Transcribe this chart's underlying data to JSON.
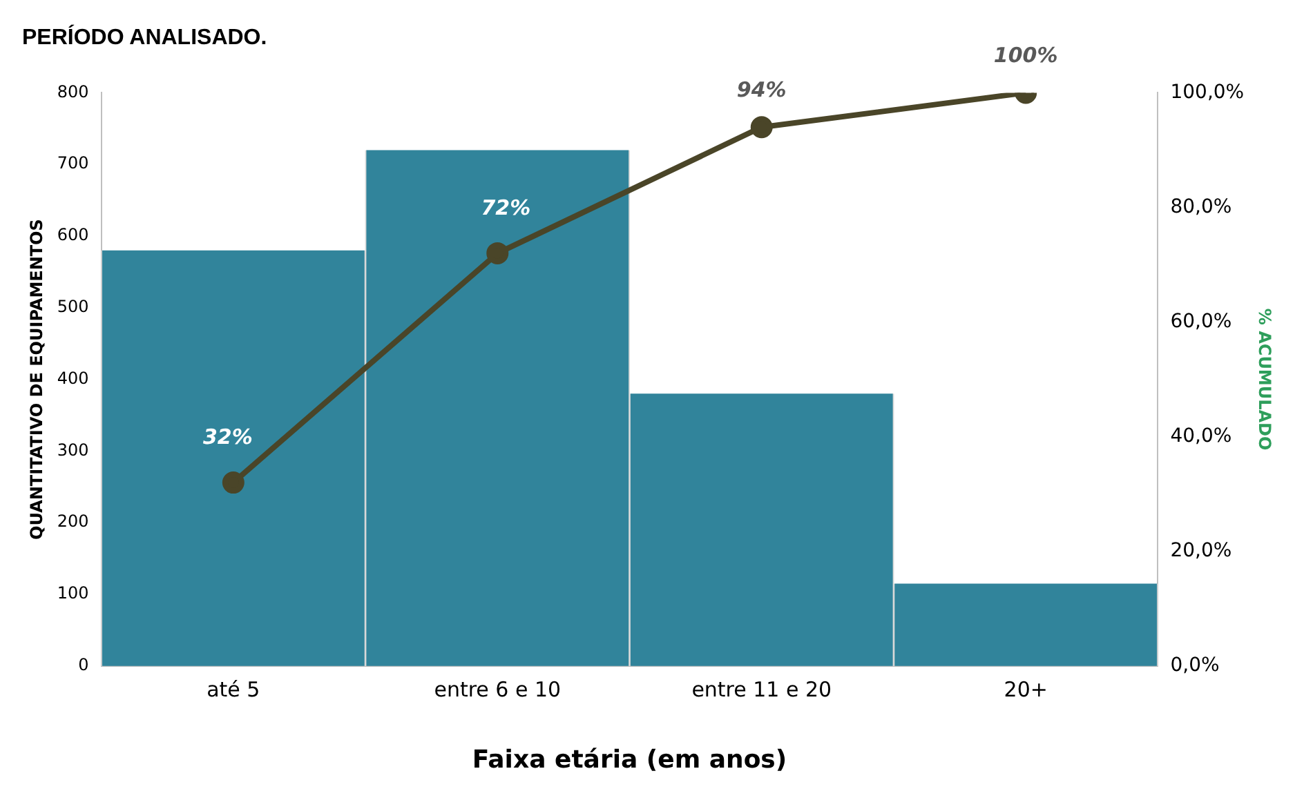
{
  "chart_data": {
    "type": "bar",
    "title": "PERÍODO ANALISADO.",
    "xlabel": "Faixa etária (em anos)",
    "ylabel": "QUANTITATIVO DE EQUIPAMENTOS",
    "y2label": "% ACUMULADO",
    "categories": [
      "até 5",
      "entre 6 e 10",
      "entre 11 e 20",
      "20+"
    ],
    "series": [
      {
        "color": "#31849b",
        "values": [
          580,
          720,
          380,
          115
        ]
      },
      {
        "type": "line",
        "axis": "y2",
        "color": "#4a4528",
        "values": [
          32,
          72,
          94,
          100
        ],
        "value_labels": [
          "32%",
          "72%",
          "94%",
          "100%"
        ],
        "marker": "circle"
      }
    ],
    "ylim": [
      0,
      800
    ],
    "yticks": [
      0,
      100,
      200,
      300,
      400,
      500,
      600,
      700,
      800
    ],
    "y2lim": [
      0,
      100
    ],
    "y2ticks": [
      {
        "value": 0,
        "label": "0,0%"
      },
      {
        "value": 20,
        "label": "20,0%"
      },
      {
        "value": 40,
        "label": "40,0%"
      },
      {
        "value": 60,
        "label": "60,0%"
      },
      {
        "value": 80,
        "label": "80,0%"
      },
      {
        "value": 100,
        "label": "100,0%"
      }
    ],
    "grid": false,
    "legend": false
  }
}
